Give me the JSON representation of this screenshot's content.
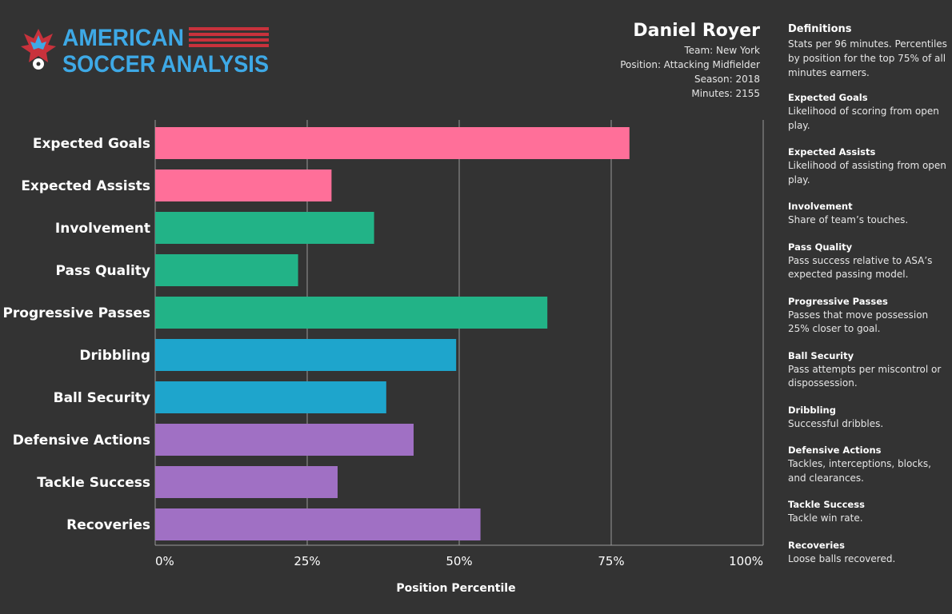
{
  "logo": {
    "line1": "AMERICAN",
    "line2": "SOCCER ANALYSIS",
    "text_color": "#3ea9e6",
    "stripe_color": "#c8323c"
  },
  "player": {
    "name": "Daniel Royer",
    "team": "Team: New York",
    "position": "Position: Attacking Midfielder",
    "season": "Season: 2018",
    "minutes": "Minutes: 2155"
  },
  "chart_data": {
    "type": "bar",
    "orientation": "horizontal",
    "categories": [
      "Expected Goals",
      "Expected Assists",
      "Involvement",
      "Pass Quality",
      "Progressive Passes",
      "Dribbling",
      "Ball Security",
      "Defensive Actions",
      "Tackle Success",
      "Recoveries"
    ],
    "values": [
      78,
      29,
      36,
      23.5,
      64.5,
      49.5,
      38,
      42.5,
      30,
      53.5
    ],
    "colors": [
      "#ff6f99",
      "#ff6f99",
      "#22b387",
      "#22b387",
      "#22b387",
      "#1ea5cc",
      "#1ea5cc",
      "#a070c4",
      "#a070c4",
      "#a070c4"
    ],
    "xlabel": "Position Percentile",
    "xlim": [
      0,
      100
    ],
    "xticks": [
      0,
      25,
      50,
      75,
      100
    ],
    "xtick_labels": [
      "0%",
      "25%",
      "50%",
      "75%",
      "100%"
    ],
    "grid": "vertical"
  },
  "definitions": {
    "title": "Definitions",
    "intro": "Stats  per 96 minutes. Percentiles by position for the top 75% of all minutes earners.",
    "items": [
      {
        "term": "Expected Goals",
        "desc": "Likelihood of scoring from open play."
      },
      {
        "term": "Expected Assists",
        "desc": "Likelihood of assisting from open play."
      },
      {
        "term": "Involvement",
        "desc": "Share of team’s touches."
      },
      {
        "term": "Pass Quality",
        "desc": "Pass success relative to ASA’s expected passing model."
      },
      {
        "term": "Progressive Passes",
        "desc": "Passes that move possession 25% closer to goal."
      },
      {
        "term": "Ball Security",
        "desc": "Pass attempts per miscontrol or dispossession."
      },
      {
        "term": "Dribbling",
        "desc": "Successful dribbles."
      },
      {
        "term": "Defensive Actions",
        "desc": "Tackles, interceptions, blocks, and clearances."
      },
      {
        "term": "Tackle Success",
        "desc": "Tackle win rate."
      },
      {
        "term": "Recoveries",
        "desc": "Loose balls recovered."
      }
    ]
  }
}
